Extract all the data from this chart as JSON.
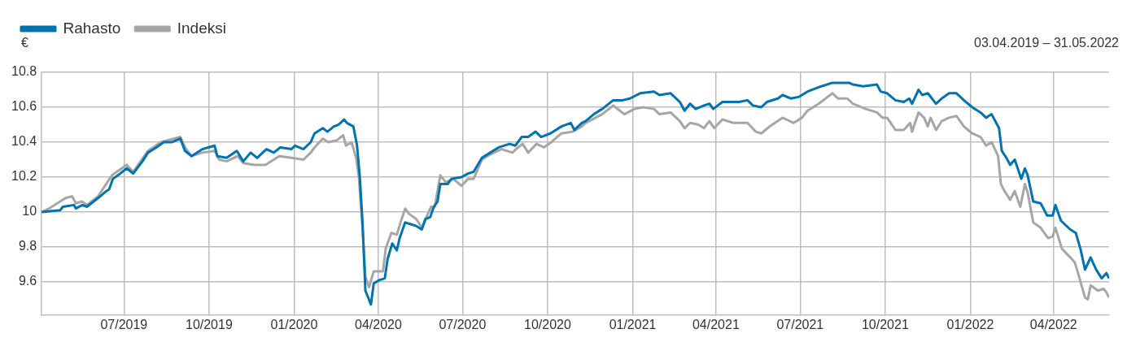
{
  "chart_data": {
    "type": "line",
    "subtitle": "03.04.2019 – 31.05.2022",
    "ylabel": "€",
    "xlim": [
      "2019-04-03",
      "2022-05-31"
    ],
    "ylim": [
      9.41,
      10.8
    ],
    "yticks": [
      9.6,
      9.8,
      10,
      10.2,
      10.4,
      10.6,
      10.8
    ],
    "xticks": [
      {
        "value": "2019-07-01",
        "label": "07/2019"
      },
      {
        "value": "2019-10-01",
        "label": "10/2019"
      },
      {
        "value": "2020-01-01",
        "label": "01/2020"
      },
      {
        "value": "2020-04-01",
        "label": "04/2020"
      },
      {
        "value": "2020-07-01",
        "label": "07/2020"
      },
      {
        "value": "2020-10-01",
        "label": "10/2020"
      },
      {
        "value": "2021-01-01",
        "label": "01/2021"
      },
      {
        "value": "2021-04-01",
        "label": "04/2021"
      },
      {
        "value": "2021-07-01",
        "label": "07/2021"
      },
      {
        "value": "2021-10-01",
        "label": "10/2021"
      },
      {
        "value": "2022-01-01",
        "label": "01/2022"
      },
      {
        "value": "2022-04-01",
        "label": "04/2022"
      }
    ],
    "grid": true,
    "legend": "top left",
    "series": [
      {
        "name": "Rahasto",
        "color": "#0073b0",
        "x": [
          "2019-04-03",
          "2019-04-23",
          "2019-04-26",
          "2019-05-08",
          "2019-05-10",
          "2019-05-17",
          "2019-05-22",
          "2019-06-03",
          "2019-06-12",
          "2019-06-15",
          "2019-06-19",
          "2019-06-27",
          "2019-07-04",
          "2019-07-11",
          "2019-07-21",
          "2019-07-27",
          "2019-08-05",
          "2019-08-13",
          "2019-08-22",
          "2019-08-31",
          "2019-09-05",
          "2019-09-12",
          "2019-09-24",
          "2019-10-07",
          "2019-10-10",
          "2019-10-20",
          "2019-10-31",
          "2019-11-07",
          "2019-11-15",
          "2019-11-22",
          "2019-12-02",
          "2019-12-10",
          "2019-12-17",
          "2019-12-29",
          "2020-01-02",
          "2020-01-11",
          "2020-01-19",
          "2020-01-23",
          "2020-02-01",
          "2020-02-06",
          "2020-02-13",
          "2020-02-18",
          "2020-02-24",
          "2020-02-27",
          "2020-03-05",
          "2020-03-09",
          "2020-03-12",
          "2020-03-15",
          "2020-03-18",
          "2020-03-21",
          "2020-03-24",
          "2020-03-27",
          "2020-04-02",
          "2020-04-08",
          "2020-04-11",
          "2020-04-16",
          "2020-04-21",
          "2020-04-24",
          "2020-04-30",
          "2020-05-06",
          "2020-05-12",
          "2020-05-18",
          "2020-05-22",
          "2020-05-27",
          "2020-05-31",
          "2020-06-04",
          "2020-06-07",
          "2020-06-15",
          "2020-06-19",
          "2020-06-30",
          "2020-07-07",
          "2020-07-13",
          "2020-07-22",
          "2020-07-31",
          "2020-08-09",
          "2020-08-21",
          "2020-08-27",
          "2020-09-03",
          "2020-09-10",
          "2020-09-18",
          "2020-09-24",
          "2020-10-04",
          "2020-10-16",
          "2020-10-26",
          "2020-10-30",
          "2020-11-07",
          "2020-11-11",
          "2020-11-20",
          "2020-11-29",
          "2020-12-11",
          "2020-12-21",
          "2020-12-29",
          "2021-01-09",
          "2021-01-24",
          "2021-01-30",
          "2021-02-11",
          "2021-02-21",
          "2021-02-26",
          "2021-03-04",
          "2021-03-10",
          "2021-03-19",
          "2021-03-25",
          "2021-03-29",
          "2021-04-08",
          "2021-04-26",
          "2021-05-05",
          "2021-05-11",
          "2021-05-20",
          "2021-05-26",
          "2021-06-07",
          "2021-06-12",
          "2021-06-21",
          "2021-06-30",
          "2021-07-09",
          "2021-07-24",
          "2021-08-05",
          "2021-08-23",
          "2021-08-27",
          "2021-09-07",
          "2021-09-22",
          "2021-09-26",
          "2021-10-03",
          "2021-10-12",
          "2021-10-21",
          "2021-10-27",
          "2021-10-30",
          "2021-11-06",
          "2021-11-10",
          "2021-11-16",
          "2021-11-25",
          "2021-12-01",
          "2021-12-09",
          "2021-12-17",
          "2021-12-25",
          "2022-01-03",
          "2022-01-12",
          "2022-01-18",
          "2022-01-24",
          "2022-02-01",
          "2022-02-04",
          "2022-02-09",
          "2022-02-13",
          "2022-02-18",
          "2022-02-25",
          "2022-03-01",
          "2022-03-04",
          "2022-03-10",
          "2022-03-18",
          "2022-03-25",
          "2022-03-31",
          "2022-04-03",
          "2022-04-09",
          "2022-04-19",
          "2022-04-25",
          "2022-04-30",
          "2022-05-05",
          "2022-05-11",
          "2022-05-17",
          "2022-05-23",
          "2022-05-28",
          "2022-05-31"
        ],
        "values": [
          10.0,
          10.01,
          10.03,
          10.04,
          10.02,
          10.04,
          10.03,
          10.08,
          10.12,
          10.13,
          10.19,
          10.22,
          10.25,
          10.22,
          10.29,
          10.34,
          10.37,
          10.4,
          10.4,
          10.42,
          10.35,
          10.32,
          10.36,
          10.38,
          10.32,
          10.31,
          10.35,
          10.29,
          10.34,
          10.31,
          10.36,
          10.34,
          10.37,
          10.36,
          10.38,
          10.36,
          10.4,
          10.45,
          10.48,
          10.46,
          10.49,
          10.5,
          10.53,
          10.51,
          10.49,
          10.38,
          10.2,
          9.93,
          9.55,
          9.51,
          9.47,
          9.59,
          9.61,
          9.62,
          9.73,
          9.82,
          9.78,
          9.85,
          9.94,
          9.93,
          9.92,
          9.9,
          9.96,
          9.97,
          10.03,
          10.06,
          10.16,
          10.16,
          10.19,
          10.2,
          10.22,
          10.23,
          10.31,
          10.34,
          10.37,
          10.39,
          10.38,
          10.43,
          10.43,
          10.46,
          10.43,
          10.45,
          10.49,
          10.51,
          10.47,
          10.51,
          10.52,
          10.56,
          10.59,
          10.64,
          10.64,
          10.65,
          10.68,
          10.69,
          10.67,
          10.68,
          10.63,
          10.58,
          10.62,
          10.59,
          10.61,
          10.62,
          10.59,
          10.63,
          10.63,
          10.64,
          10.61,
          10.6,
          10.63,
          10.65,
          10.67,
          10.65,
          10.66,
          10.69,
          10.72,
          10.74,
          10.74,
          10.73,
          10.72,
          10.73,
          10.69,
          10.68,
          10.64,
          10.63,
          10.65,
          10.62,
          10.7,
          10.67,
          10.68,
          10.62,
          10.65,
          10.68,
          10.68,
          10.64,
          10.6,
          10.57,
          10.54,
          10.56,
          10.48,
          10.35,
          10.31,
          10.27,
          10.3,
          10.19,
          10.25,
          10.21,
          10.06,
          10.05,
          9.98,
          9.98,
          10.04,
          9.95,
          9.9,
          9.88,
          9.79,
          9.67,
          9.74,
          9.67,
          9.62,
          9.65,
          9.62
        ]
      },
      {
        "name": "Indeksi",
        "color": "#a6a6a6",
        "x": [
          "2019-04-03",
          "2019-04-11",
          "2019-04-23",
          "2019-04-29",
          "2019-05-06",
          "2019-05-10",
          "2019-05-17",
          "2019-05-22",
          "2019-06-03",
          "2019-06-18",
          "2019-07-04",
          "2019-07-11",
          "2019-07-27",
          "2019-08-10",
          "2019-08-31",
          "2019-09-05",
          "2019-09-12",
          "2019-09-24",
          "2019-10-07",
          "2019-10-12",
          "2019-10-20",
          "2019-11-01",
          "2019-11-07",
          "2019-11-19",
          "2019-12-01",
          "2019-12-10",
          "2019-12-16",
          "2019-12-29",
          "2020-01-11",
          "2020-01-19",
          "2020-01-23",
          "2020-02-01",
          "2020-02-07",
          "2020-02-16",
          "2020-02-23",
          "2020-02-26",
          "2020-03-03",
          "2020-03-08",
          "2020-03-11",
          "2020-03-15",
          "2020-03-18",
          "2020-03-22",
          "2020-03-27",
          "2020-03-31",
          "2020-04-06",
          "2020-04-09",
          "2020-04-15",
          "2020-04-21",
          "2020-04-25",
          "2020-04-30",
          "2020-05-04",
          "2020-05-12",
          "2020-05-18",
          "2020-05-22",
          "2020-05-28",
          "2020-06-01",
          "2020-06-07",
          "2020-06-13",
          "2020-06-21",
          "2020-06-30",
          "2020-07-07",
          "2020-07-13",
          "2020-07-22",
          "2020-07-31",
          "2020-08-12",
          "2020-08-24",
          "2020-08-30",
          "2020-09-04",
          "2020-09-10",
          "2020-09-19",
          "2020-09-27",
          "2020-10-05",
          "2020-10-16",
          "2020-10-28",
          "2020-11-07",
          "2020-11-11",
          "2020-11-29",
          "2020-12-11",
          "2020-12-23",
          "2021-01-03",
          "2021-01-12",
          "2021-01-24",
          "2021-01-30",
          "2021-02-11",
          "2021-02-21",
          "2021-02-26",
          "2021-03-04",
          "2021-03-13",
          "2021-03-19",
          "2021-03-25",
          "2021-03-30",
          "2021-04-08",
          "2021-04-20",
          "2021-05-05",
          "2021-05-14",
          "2021-05-20",
          "2021-05-29",
          "2021-06-12",
          "2021-06-24",
          "2021-07-03",
          "2021-07-09",
          "2021-07-21",
          "2021-08-05",
          "2021-08-11",
          "2021-08-21",
          "2021-08-27",
          "2021-09-01",
          "2021-09-10",
          "2021-09-22",
          "2021-09-28",
          "2021-10-03",
          "2021-10-12",
          "2021-10-21",
          "2021-10-28",
          "2021-10-30",
          "2021-11-06",
          "2021-11-12",
          "2021-11-16",
          "2021-11-19",
          "2021-11-25",
          "2021-12-01",
          "2021-12-09",
          "2021-12-17",
          "2021-12-25",
          "2022-01-03",
          "2022-01-12",
          "2022-01-18",
          "2022-01-24",
          "2022-01-31",
          "2022-02-03",
          "2022-02-07",
          "2022-02-13",
          "2022-02-18",
          "2022-02-24",
          "2022-03-01",
          "2022-03-04",
          "2022-03-10",
          "2022-03-18",
          "2022-03-26",
          "2022-03-31",
          "2022-04-03",
          "2022-04-10",
          "2022-04-19",
          "2022-04-24",
          "2022-04-28",
          "2022-05-05",
          "2022-05-08",
          "2022-05-11",
          "2022-05-19",
          "2022-05-25",
          "2022-05-28",
          "2022-05-31"
        ],
        "values": [
          10.0,
          10.02,
          10.06,
          10.08,
          10.09,
          10.05,
          10.06,
          10.04,
          10.09,
          10.21,
          10.27,
          10.23,
          10.35,
          10.4,
          10.43,
          10.37,
          10.32,
          10.34,
          10.35,
          10.3,
          10.29,
          10.32,
          10.28,
          10.27,
          10.27,
          10.3,
          10.32,
          10.31,
          10.3,
          10.34,
          10.37,
          10.42,
          10.4,
          10.41,
          10.44,
          10.38,
          10.4,
          10.31,
          10.2,
          9.9,
          9.63,
          9.57,
          9.66,
          9.66,
          9.66,
          9.79,
          9.88,
          9.87,
          9.94,
          10.02,
          9.99,
          9.96,
          9.91,
          9.96,
          10.03,
          10.03,
          10.21,
          10.17,
          10.19,
          10.15,
          10.19,
          10.19,
          10.3,
          10.33,
          10.36,
          10.34,
          10.37,
          10.39,
          10.34,
          10.39,
          10.37,
          10.4,
          10.45,
          10.46,
          10.49,
          10.51,
          10.56,
          10.61,
          10.56,
          10.59,
          10.6,
          10.59,
          10.56,
          10.57,
          10.52,
          10.48,
          10.51,
          10.5,
          10.48,
          10.52,
          10.48,
          10.53,
          10.51,
          10.51,
          10.46,
          10.45,
          10.49,
          10.54,
          10.51,
          10.54,
          10.58,
          10.62,
          10.68,
          10.65,
          10.65,
          10.62,
          10.61,
          10.59,
          10.57,
          10.54,
          10.54,
          10.47,
          10.47,
          10.51,
          10.46,
          10.57,
          10.54,
          10.49,
          10.54,
          10.47,
          10.52,
          10.54,
          10.55,
          10.49,
          10.45,
          10.43,
          10.38,
          10.4,
          10.32,
          10.16,
          10.12,
          10.07,
          10.12,
          10.03,
          10.16,
          10.11,
          9.94,
          9.91,
          9.85,
          9.86,
          9.91,
          9.79,
          9.74,
          9.71,
          9.64,
          9.51,
          9.5,
          9.58,
          9.55,
          9.56,
          9.54,
          9.51
        ]
      }
    ]
  }
}
